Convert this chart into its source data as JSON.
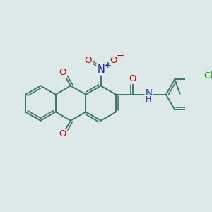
{
  "bg_color": "#dde8e8",
  "bond_color": "#3a7a6a",
  "bond_width": 1.4,
  "dbo": 0.12,
  "atom_colors": {
    "O": "#cc0000",
    "N": "#2222cc",
    "Cl": "#009900",
    "C": "#3a7a6a"
  },
  "fs": 9.5,
  "fig_size": [
    3.0,
    3.0
  ],
  "dpi": 100
}
